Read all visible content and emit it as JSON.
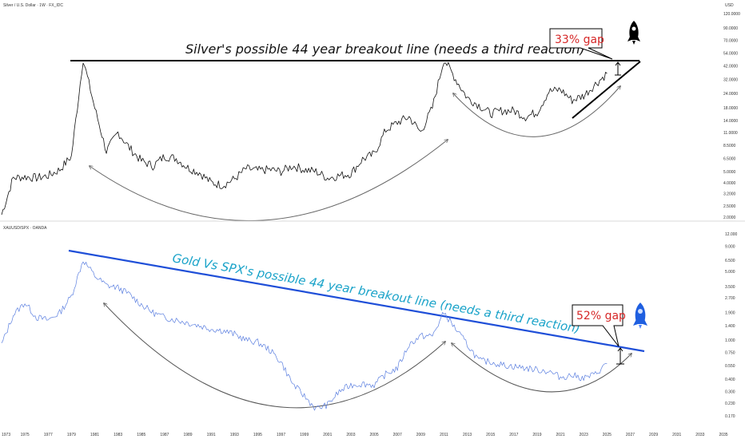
{
  "chart_data": [
    {
      "type": "line",
      "symbol": "Silver / U.S. Dollar · 1W · FX_IDC",
      "axis_unit": "USD",
      "log_scale": true,
      "line_color": "#111111",
      "y_ticks": [
        "120.0000",
        "90.0000",
        "70.0000",
        "54.0000",
        "42.0000",
        "32.0000",
        "24.0000",
        "18.0000",
        "14.0000",
        "11.0000",
        "8.5000",
        "6.5000",
        "5.0000",
        "4.0000",
        "3.2000",
        "2.5000",
        "2.0000"
      ],
      "x": [
        1973,
        1974,
        1975,
        1976,
        1977,
        1978,
        1979,
        1980,
        1981,
        1982,
        1983,
        1984,
        1985,
        1986,
        1987,
        1988,
        1989,
        1990,
        1991,
        1992,
        1993,
        1994,
        1995,
        1996,
        1997,
        1998,
        1999,
        2000,
        2001,
        2002,
        2003,
        2004,
        2005,
        2006,
        2007,
        2008,
        2009,
        2010,
        2011,
        2012,
        2013,
        2014,
        2015,
        2016,
        2017,
        2018,
        2019,
        2020,
        2021,
        2022,
        2023,
        2024,
        2025
      ],
      "values": [
        2.1,
        4.4,
        4.5,
        4.4,
        4.6,
        5.2,
        6.8,
        48.0,
        18.0,
        7.5,
        11.0,
        8.0,
        6.2,
        5.6,
        6.8,
        6.5,
        5.4,
        4.9,
        4.0,
        3.8,
        4.3,
        5.3,
        5.1,
        5.2,
        5.0,
        5.6,
        5.2,
        5.0,
        4.4,
        4.6,
        4.8,
        6.4,
        7.1,
        11.5,
        13.4,
        15.0,
        11.0,
        18.0,
        48.0,
        32.0,
        22.0,
        19.0,
        16.0,
        17.0,
        17.0,
        15.0,
        16.5,
        25.0,
        26.0,
        21.0,
        23.0,
        29.0,
        36.0
      ],
      "annotations": {
        "title": "Silver's possible 44 year breakout line (needs a third reaction)",
        "gap_label": "33% gap",
        "breakout_level": 48.0,
        "icon": "rocket-icon"
      }
    },
    {
      "type": "line",
      "symbol": "XAUUSD/SPX · OANDA",
      "log_scale": true,
      "line_color": "#5b7fe0",
      "trendline_color": "#1f4fd8",
      "y_ticks": [
        "12.000",
        "9.000",
        "6.500",
        "5.000",
        "3.500",
        "2.700",
        "1.900",
        "1.400",
        "1.000",
        "0.750",
        "0.550",
        "0.400",
        "0.300",
        "0.230",
        "0.170"
      ],
      "x_ticks": [
        "1973",
        "1975",
        "1977",
        "1979",
        "1981",
        "1983",
        "1985",
        "1987",
        "1989",
        "1991",
        "1993",
        "1995",
        "1997",
        "1999",
        "2001",
        "2003",
        "2005",
        "2007",
        "2009",
        "2011",
        "2013",
        "2015",
        "2017",
        "2019",
        "2021",
        "2023",
        "2025",
        "2027",
        "2029",
        "2031",
        "2033",
        "2035"
      ],
      "x": [
        1973,
        1974,
        1975,
        1976,
        1977,
        1978,
        1979,
        1980,
        1981,
        1982,
        1983,
        1984,
        1985,
        1986,
        1987,
        1988,
        1989,
        1990,
        1991,
        1992,
        1993,
        1994,
        1995,
        1996,
        1997,
        1998,
        1999,
        2000,
        2001,
        2002,
        2003,
        2004,
        2005,
        2006,
        2007,
        2008,
        2009,
        2010,
        2011,
        2012,
        2013,
        2014,
        2015,
        2016,
        2017,
        2018,
        2019,
        2020,
        2021,
        2022,
        2023,
        2024,
        2025
      ],
      "values": [
        0.9,
        1.8,
        2.4,
        1.7,
        1.6,
        1.9,
        2.8,
        6.5,
        4.5,
        3.6,
        3.4,
        2.9,
        2.3,
        1.9,
        1.7,
        1.6,
        1.5,
        1.4,
        1.3,
        1.25,
        1.15,
        1.0,
        0.95,
        0.8,
        0.6,
        0.36,
        0.27,
        0.2,
        0.22,
        0.3,
        0.35,
        0.36,
        0.35,
        0.45,
        0.52,
        0.9,
        1.1,
        1.1,
        1.9,
        1.3,
        0.9,
        0.62,
        0.6,
        0.56,
        0.54,
        0.52,
        0.5,
        0.48,
        0.42,
        0.44,
        0.41,
        0.45,
        0.58
      ],
      "annotations": {
        "title": "Gold Vs SPX's possible 44 year breakout line (needs a third reaction)",
        "gap_label": "52% gap",
        "icon": "rocket-icon"
      }
    }
  ]
}
